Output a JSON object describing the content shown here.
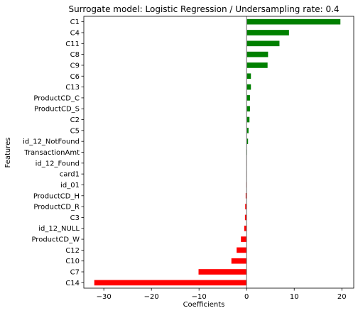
{
  "chart_data": {
    "type": "bar",
    "orientation": "horizontal",
    "title": "Surrogate model: Logistic Regression / Undersampling rate: 0.4",
    "xlabel": "Coefficients",
    "ylabel": "Features",
    "xlim": [
      -34.2,
      22.5
    ],
    "xticks": [
      -30,
      -20,
      -10,
      0,
      10,
      20
    ],
    "xtick_labels": [
      "−30",
      "−20",
      "−10",
      "0",
      "10",
      "20"
    ],
    "grid": false,
    "zero_line": true,
    "colors": {
      "positive": "#008000",
      "negative": "#ff0000",
      "zero_line": "#808080"
    },
    "categories": [
      "C1",
      "C4",
      "C11",
      "C8",
      "C9",
      "C6",
      "C13",
      "ProductCD_C",
      "ProductCD_S",
      "C2",
      "C5",
      "id_12_NotFound",
      "TransactionAmt",
      "id_12_Found",
      "card1",
      "id_01",
      "ProductCD_H",
      "ProductCD_R",
      "C3",
      "id_12_NULL",
      "ProductCD_W",
      "C12",
      "C10",
      "C7",
      "C14"
    ],
    "values": [
      19.7,
      8.9,
      6.9,
      4.5,
      4.4,
      0.9,
      0.9,
      0.7,
      0.7,
      0.6,
      0.4,
      0.3,
      0.05,
      -0.05,
      -0.05,
      -0.1,
      -0.2,
      -0.3,
      -0.35,
      -0.5,
      -1.2,
      -2.1,
      -3.2,
      -10.1,
      -32.0
    ]
  }
}
